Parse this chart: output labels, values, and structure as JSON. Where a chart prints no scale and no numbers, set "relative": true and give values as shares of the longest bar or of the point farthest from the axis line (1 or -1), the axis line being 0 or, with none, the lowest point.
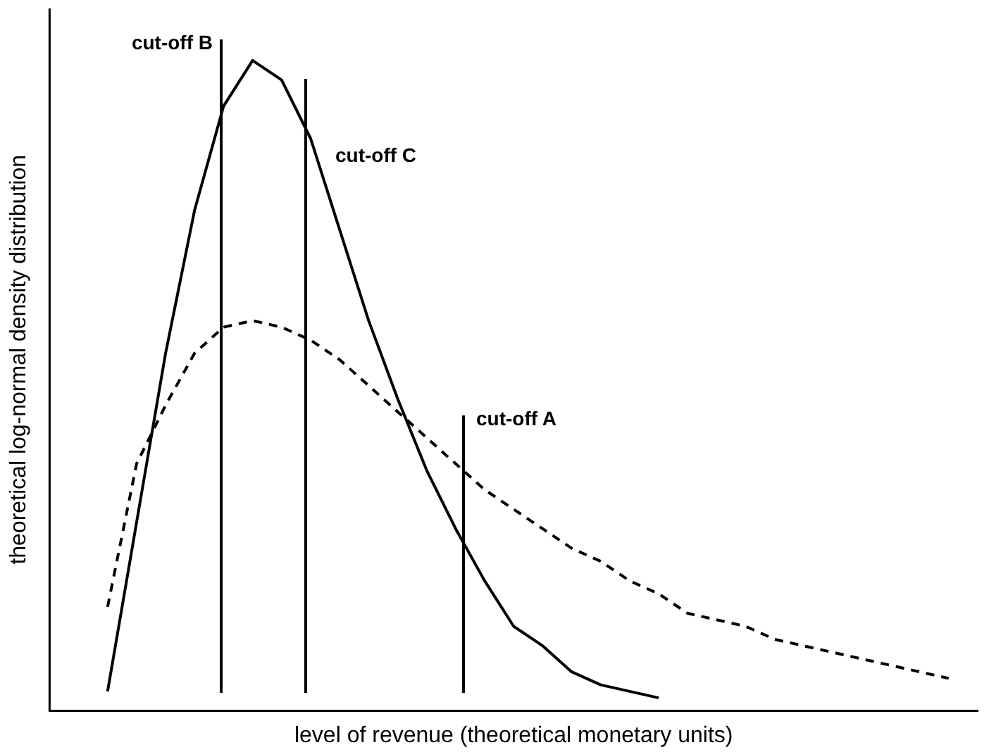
{
  "chart_data": {
    "type": "line",
    "relative": true,
    "xlabel": "level of revenue (theoretical monetary units)",
    "ylabel": "theoretical log-normal density distribution",
    "categories": [
      null,
      null,
      null,
      null,
      null,
      null,
      null,
      null,
      null,
      null,
      null,
      null,
      null,
      null,
      null,
      null,
      null,
      null,
      null,
      null,
      null,
      null,
      null,
      null,
      null,
      null,
      null,
      null,
      null,
      null,
      null,
      null,
      null
    ],
    "series": [
      {
        "color": "#000000",
        "line_style": "solid",
        "values": [
          null,
          null,
          0.03,
          0.29,
          0.55,
          0.77,
          0.93,
          1.0,
          0.97,
          0.88,
          0.74,
          0.6,
          0.48,
          0.37,
          0.28,
          0.2,
          0.13,
          0.1,
          0.06,
          0.04,
          0.03,
          0.02,
          null,
          null,
          null,
          null,
          null,
          null,
          null,
          null,
          null,
          null,
          null
        ]
      },
      {
        "color": "#000000",
        "line_style": "dashed",
        "values": [
          null,
          null,
          0.16,
          0.38,
          0.47,
          0.55,
          0.59,
          0.6,
          0.59,
          0.57,
          0.54,
          0.5,
          0.46,
          0.42,
          0.38,
          0.34,
          0.31,
          0.28,
          0.25,
          0.23,
          0.2,
          0.18,
          0.15,
          0.14,
          0.13,
          0.11,
          0.1,
          0.09,
          0.08,
          0.07,
          0.06,
          0.05,
          null
        ]
      }
    ],
    "annotations": [
      "cut-off B",
      "cut-off C",
      "cut-off A"
    ]
  }
}
